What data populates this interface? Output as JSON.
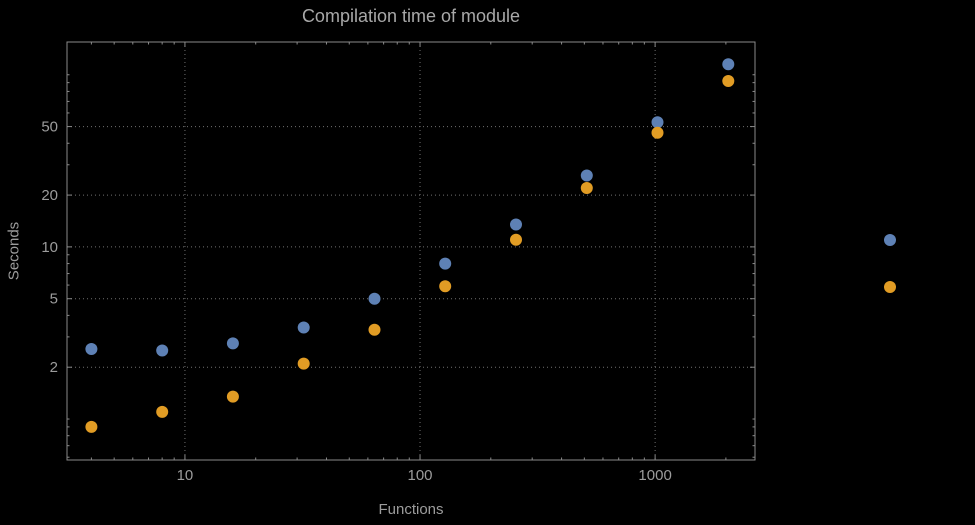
{
  "chart_data": {
    "type": "scatter",
    "scale": "log-log",
    "title": "Compilation time of module",
    "xlabel": "Functions",
    "ylabel": "Seconds",
    "x_ticks": [
      10,
      100,
      1000
    ],
    "y_ticks": [
      2,
      5,
      10,
      20,
      50
    ],
    "x_range": [
      3.15,
      2660
    ],
    "y_range": [
      0.578,
      155
    ],
    "grid": "dotted major gridlines",
    "legend": {
      "labels_visible": false,
      "marker_colors": [
        "#5e81b5",
        "#e19c24"
      ]
    },
    "series": [
      {
        "name": "series-1",
        "color": "#5e81b5",
        "x": [
          4,
          8,
          16,
          32,
          64,
          128,
          256,
          512,
          1024,
          2048
        ],
        "y": [
          2.55,
          2.5,
          2.75,
          3.4,
          5.0,
          8.0,
          13.5,
          26,
          53,
          115
        ]
      },
      {
        "name": "series-2",
        "color": "#e19c24",
        "x": [
          4,
          8,
          16,
          32,
          64,
          128,
          256,
          512,
          1024,
          2048
        ],
        "y": [
          0.9,
          1.1,
          1.35,
          2.1,
          3.3,
          5.9,
          11,
          22,
          46,
          92
        ]
      }
    ]
  },
  "colors": {
    "background": "#000000",
    "frame": "#8a8a8a",
    "grid": "#707070",
    "text": "#9c9c9c"
  }
}
